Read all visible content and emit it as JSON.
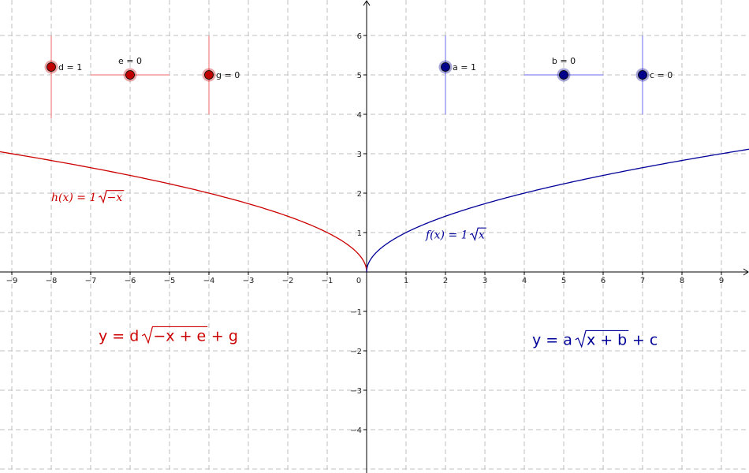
{
  "graph": {
    "x_range": [
      -9.3,
      9.7
    ],
    "y_range": [
      -5.1,
      6.9
    ],
    "x_ticks": [
      -9,
      -8,
      -7,
      -6,
      -5,
      -4,
      -3,
      -2,
      -1,
      0,
      1,
      2,
      3,
      4,
      5,
      6,
      7,
      8,
      9
    ],
    "y_ticks": [
      -4,
      -3,
      -2,
      -1,
      1,
      2,
      3,
      4,
      5,
      6
    ],
    "origin_label": "0",
    "grid": true
  },
  "colors": {
    "red": "#cc0000",
    "red_point": "#c00000",
    "blue": "#000099",
    "blue_point": "#00008b",
    "grid": "#bfbfbf",
    "axis": "#000000"
  },
  "sliders": {
    "red": [
      {
        "name": "d",
        "label": "d = 1",
        "value": 1,
        "orientation": "vertical",
        "center": [
          -8,
          4.5
        ],
        "min": 3.9,
        "max": 6.0
      },
      {
        "name": "e",
        "label": "e = 0",
        "value": 0,
        "orientation": "horizontal",
        "center": [
          -6,
          5.0
        ],
        "min": -7.0,
        "max": -5.0
      },
      {
        "name": "g",
        "label": "g = 0",
        "value": 0,
        "orientation": "vertical",
        "center": [
          -4,
          5.0
        ],
        "min": 4.0,
        "max": 6.0
      }
    ],
    "blue": [
      {
        "name": "a",
        "label": "a = 1",
        "value": 1,
        "orientation": "vertical",
        "center": [
          2,
          4.5
        ],
        "min": 4.0,
        "max": 6.0
      },
      {
        "name": "b",
        "label": "b = 0",
        "value": 0,
        "orientation": "horizontal",
        "center": [
          5,
          5.0
        ],
        "min": 4.0,
        "max": 6.0
      },
      {
        "name": "c",
        "label": "c = 0",
        "value": 0,
        "orientation": "vertical",
        "center": [
          7,
          5.0
        ],
        "min": 4.0,
        "max": 6.0
      }
    ]
  },
  "slider_points": {
    "d": [
      -8,
      5.2
    ],
    "e": [
      -6,
      5.0
    ],
    "g": [
      -4,
      5.0
    ],
    "a": [
      2,
      5.2
    ],
    "b": [
      5,
      5.0
    ],
    "c": [
      7,
      5.0
    ]
  },
  "functions": {
    "h": {
      "label_prefix": "h(x) = 1",
      "radicand": "−x",
      "label_pos": [
        -8.0,
        1.8
      ]
    },
    "f": {
      "label_prefix": "f(x) = 1",
      "radicand": "x",
      "label_pos": [
        1.5,
        0.85
      ]
    }
  },
  "equations": {
    "red": {
      "prefix": "y = d",
      "radicand": "−x + e",
      "suffix": "+ g",
      "pos": [
        -6.8,
        -1.75
      ]
    },
    "blue": {
      "prefix": "y = a",
      "radicand": "x + b",
      "suffix": "+ c",
      "pos": [
        4.2,
        -1.85
      ]
    }
  }
}
